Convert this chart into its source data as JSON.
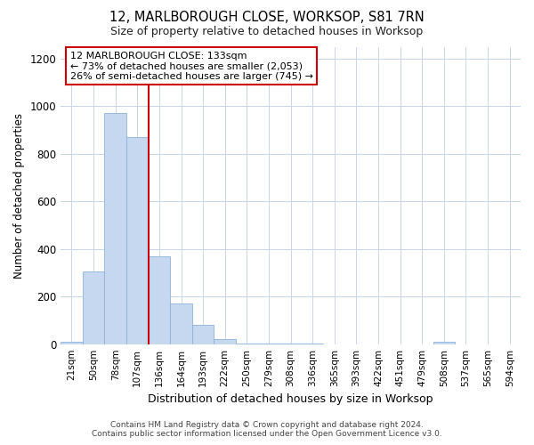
{
  "title": "12, MARLBOROUGH CLOSE, WORKSOP, S81 7RN",
  "subtitle": "Size of property relative to detached houses in Worksop",
  "xlabel": "Distribution of detached houses by size in Worksop",
  "ylabel": "Number of detached properties",
  "categories": [
    "21sqm",
    "50sqm",
    "78sqm",
    "107sqm",
    "136sqm",
    "164sqm",
    "193sqm",
    "222sqm",
    "250sqm",
    "279sqm",
    "308sqm",
    "336sqm",
    "365sqm",
    "393sqm",
    "422sqm",
    "451sqm",
    "479sqm",
    "508sqm",
    "537sqm",
    "565sqm",
    "594sqm"
  ],
  "values": [
    10,
    305,
    970,
    870,
    370,
    170,
    80,
    20,
    3,
    2,
    2,
    2,
    0,
    0,
    0,
    0,
    0,
    10,
    0,
    0,
    0
  ],
  "bar_color": "#c5d8ef",
  "bar_edge_color": "#8ab4d8",
  "property_line_index": 4,
  "annotation_line1": "12 MARLBOROUGH CLOSE: 133sqm",
  "annotation_line2": "← 73% of detached houses are smaller (2,053)",
  "annotation_line3": "26% of semi-detached houses are larger (745) →",
  "red_line_color": "#cc0000",
  "annotation_box_color": "#ffffff",
  "annotation_box_edge": "#cc0000",
  "ylim": [
    0,
    1250
  ],
  "yticks": [
    0,
    200,
    400,
    600,
    800,
    1000,
    1200
  ],
  "background_color": "#ffffff",
  "grid_color": "#c8d4e8",
  "footer1": "Contains HM Land Registry data © Crown copyright and database right 2024.",
  "footer2": "Contains public sector information licensed under the Open Government Licence v3.0."
}
